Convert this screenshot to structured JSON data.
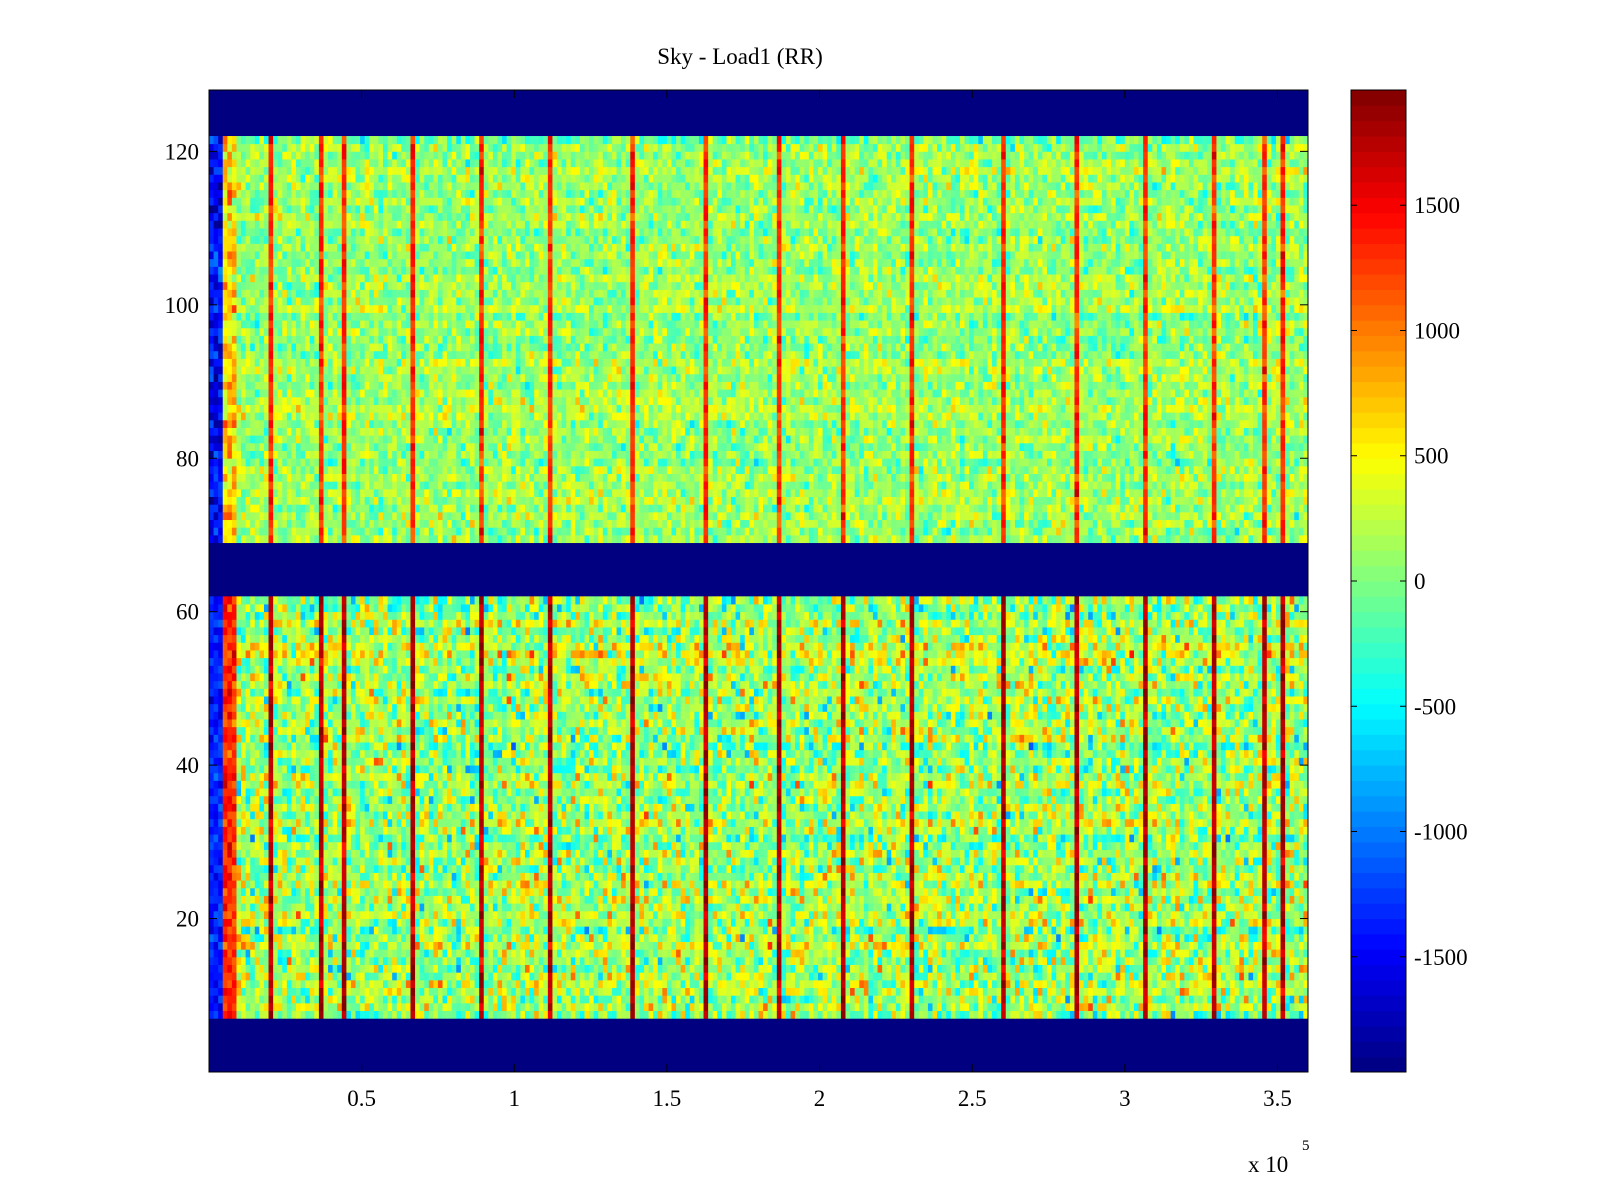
{
  "chart_data": {
    "type": "heatmap",
    "title": "Sky - Load1 (RR)",
    "xlabel": "",
    "ylabel": "",
    "colormap": "jet",
    "x_range": [
      0,
      360000
    ],
    "y_range": [
      0,
      128
    ],
    "x_ticks": [
      {
        "value": 50000,
        "label": "0.5"
      },
      {
        "value": 100000,
        "label": "1"
      },
      {
        "value": 150000,
        "label": "1.5"
      },
      {
        "value": 200000,
        "label": "2"
      },
      {
        "value": 250000,
        "label": "2.5"
      },
      {
        "value": 300000,
        "label": "3"
      },
      {
        "value": 350000,
        "label": "3.5"
      }
    ],
    "x_exponent_base": "x 10",
    "x_exponent_power": "5",
    "y_ticks": [
      {
        "value": 20,
        "label": "20"
      },
      {
        "value": 40,
        "label": "40"
      },
      {
        "value": 60,
        "label": "60"
      },
      {
        "value": 80,
        "label": "80"
      },
      {
        "value": 100,
        "label": "100"
      },
      {
        "value": 120,
        "label": "120"
      }
    ],
    "colorbar": {
      "range": [
        -1960,
        1960
      ],
      "ticks": [
        {
          "value": -1500,
          "label": "-1500"
        },
        {
          "value": -1000,
          "label": "-1000"
        },
        {
          "value": -500,
          "label": "-500"
        },
        {
          "value": 0,
          "label": "0"
        },
        {
          "value": 500,
          "label": "500"
        },
        {
          "value": 1000,
          "label": "1000"
        },
        {
          "value": 1500,
          "label": "1500"
        }
      ]
    },
    "masked_rows": [
      [
        0,
        7
      ],
      [
        62,
        69
      ],
      [
        122,
        128
      ]
    ],
    "bands": [
      {
        "y_range": [
          7,
          62
        ],
        "mean": 150,
        "spread": 520
      },
      {
        "y_range": [
          69,
          122
        ],
        "mean": 100,
        "spread": 330
      }
    ],
    "spike_columns_x": [
      19500,
      37000,
      43500,
      66000,
      89000,
      111000,
      139000,
      163000,
      186000,
      207000,
      230000,
      260000,
      284000,
      307000,
      329000,
      345000,
      352000
    ]
  }
}
